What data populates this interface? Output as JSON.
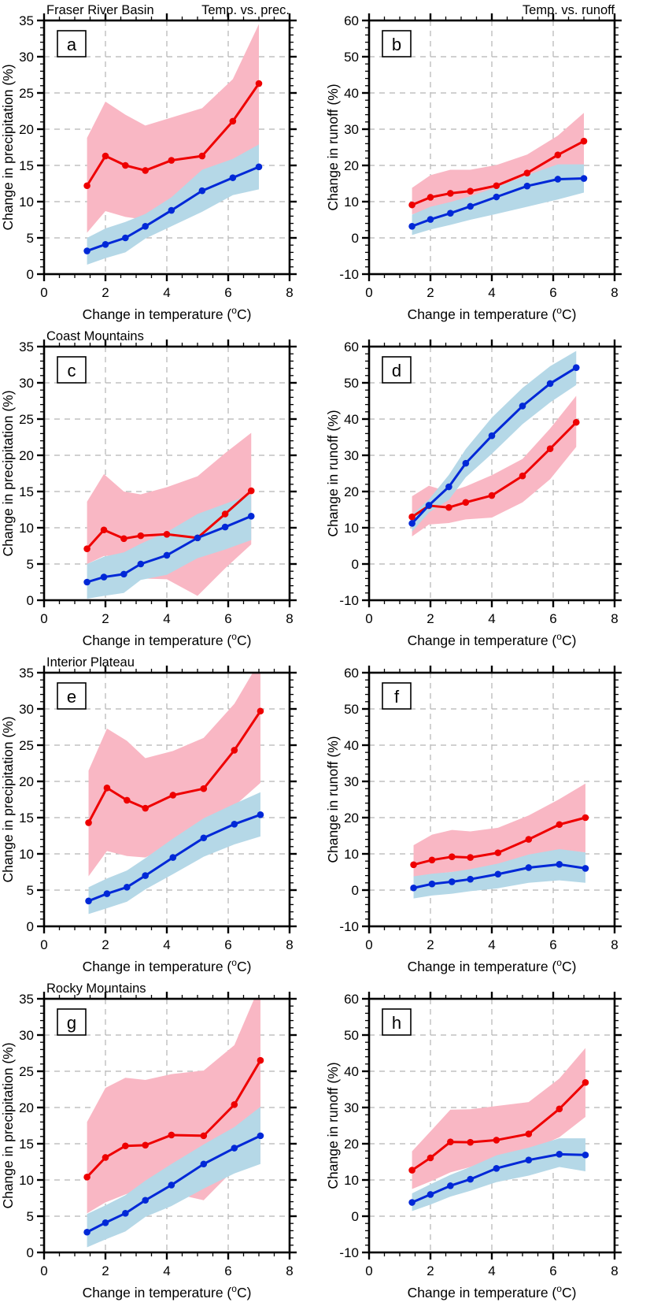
{
  "figure": {
    "row_titles": [
      "Fraser River Basin",
      "Coast Mountains",
      "Interior Plateau",
      "Rocky Mountains"
    ],
    "corner_title_left_column": "Temp. vs. prec.",
    "corner_title_right_column": "Temp. vs. runoff"
  },
  "colors": {
    "red_line": "#ee0000",
    "red_band": "#f9b7c4",
    "blue_line": "#0028d7",
    "blue_band": "#b5d8e7",
    "grid": "#b4b4b4",
    "frame": "#000000"
  },
  "chart_data": [
    {
      "type": "line",
      "id": "a",
      "region_title": "Fraser River Basin",
      "corner_title": "Temp. vs. prec.",
      "xlabel": "Change in temperature (°C)",
      "ylabel": "Change in precipitation (%)",
      "xlim": [
        0,
        8
      ],
      "ylim": [
        0,
        35
      ],
      "xtick_major": 2,
      "xtick_minor": 0.5,
      "ytick_major": 5,
      "ytick_minor": 1,
      "grid": true,
      "legend": "none",
      "x": [
        1.4,
        2.0,
        2.65,
        3.3,
        4.15,
        5.15,
        6.15,
        7.0
      ],
      "series": [
        {
          "name": "red",
          "values": [
            12.2,
            16.3,
            15.0,
            14.3,
            15.7,
            16.3,
            21.1,
            26.3
          ],
          "band_upper": [
            18.8,
            23.8,
            22.0,
            20.5,
            21.6,
            22.9,
            26.9,
            34.5
          ],
          "band_lower": [
            5.7,
            8.7,
            7.9,
            7.5,
            8.8,
            11.0,
            13.5,
            16.0
          ]
        },
        {
          "name": "blue",
          "values": [
            3.2,
            4.1,
            5.0,
            6.6,
            8.8,
            11.5,
            13.3,
            14.8
          ],
          "band_upper": [
            5.0,
            6.3,
            7.2,
            8.3,
            10.6,
            14.4,
            15.9,
            17.9
          ],
          "band_lower": [
            1.3,
            2.2,
            3.0,
            4.9,
            6.6,
            8.6,
            10.9,
            11.7
          ]
        }
      ]
    },
    {
      "type": "line",
      "id": "b",
      "region_title": null,
      "corner_title": "Temp. vs. runoff",
      "xlabel": "Change in temperature (°C)",
      "ylabel": "Change in runoff (%)",
      "xlim": [
        0,
        8
      ],
      "ylim": [
        -10,
        60
      ],
      "xtick_major": 2,
      "xtick_minor": 0.5,
      "ytick_major": 10,
      "ytick_minor": 2,
      "grid": true,
      "legend": "none",
      "x": [
        1.4,
        2.0,
        2.65,
        3.3,
        4.15,
        5.15,
        6.15,
        7.0
      ],
      "series": [
        {
          "name": "red",
          "values": [
            9.1,
            11.2,
            12.3,
            12.9,
            14.4,
            17.9,
            22.9,
            26.7
          ],
          "band_upper": [
            13.8,
            17.3,
            18.8,
            18.8,
            20.1,
            23.0,
            28.2,
            34.5
          ],
          "band_lower": [
            6.5,
            8.0,
            9.0,
            9.7,
            11.0,
            13.2,
            16.0,
            18.5
          ]
        },
        {
          "name": "blue",
          "values": [
            3.2,
            5.1,
            6.8,
            8.7,
            11.3,
            14.3,
            16.2,
            16.4
          ],
          "band_upper": [
            6.4,
            8.6,
            9.9,
            11.5,
            14.0,
            17.3,
            20.3,
            20.3
          ],
          "band_lower": [
            0.8,
            2.3,
            3.6,
            5.0,
            6.6,
            8.6,
            10.6,
            12.5
          ]
        }
      ]
    },
    {
      "type": "line",
      "id": "c",
      "region_title": "Coast Mountains",
      "corner_title": null,
      "xlabel": "Change in temperature (°C)",
      "ylabel": "Change in precipitation (%)",
      "xlim": [
        0,
        8
      ],
      "ylim": [
        0,
        35
      ],
      "xtick_major": 2,
      "xtick_minor": 0.5,
      "ytick_major": 5,
      "ytick_minor": 1,
      "grid": true,
      "legend": "none",
      "x": [
        1.4,
        1.95,
        2.6,
        3.15,
        4.0,
        5.0,
        5.9,
        6.75
      ],
      "series": [
        {
          "name": "red",
          "values": [
            7.1,
            9.7,
            8.5,
            8.9,
            9.1,
            8.6,
            11.9,
            15.1
          ],
          "band_upper": [
            13.6,
            17.4,
            15.0,
            14.6,
            15.6,
            17.1,
            20.3,
            23.1
          ],
          "band_lower": [
            5.0,
            6.1,
            6.3,
            3.0,
            2.9,
            0.6,
            4.4,
            7.7
          ]
        },
        {
          "name": "blue",
          "values": [
            2.5,
            3.2,
            3.6,
            5.0,
            6.2,
            8.6,
            10.1,
            11.6
          ],
          "band_upper": [
            5.0,
            6.0,
            6.6,
            7.8,
            9.4,
            11.9,
            13.3,
            14.6
          ],
          "band_lower": [
            0.2,
            0.6,
            1.0,
            2.8,
            3.5,
            5.8,
            7.0,
            8.3
          ]
        }
      ]
    },
    {
      "type": "line",
      "id": "d",
      "region_title": null,
      "corner_title": null,
      "xlabel": "Change in temperature (°C)",
      "ylabel": "Change in runoff (%)",
      "xlim": [
        0,
        8
      ],
      "ylim": [
        -10,
        60
      ],
      "xtick_major": 2,
      "xtick_minor": 0.5,
      "ytick_major": 10,
      "ytick_minor": 2,
      "grid": true,
      "legend": "none",
      "x": [
        1.4,
        1.95,
        2.6,
        3.15,
        4.0,
        5.0,
        5.9,
        6.75
      ],
      "series": [
        {
          "name": "red",
          "values": [
            13.0,
            16.1,
            15.6,
            17.0,
            18.9,
            24.3,
            31.8,
            39.1
          ],
          "band_upper": [
            18.7,
            21.6,
            19.9,
            21.4,
            24.5,
            29.0,
            37.4,
            46.4
          ],
          "band_lower": [
            7.6,
            10.9,
            11.3,
            12.3,
            12.8,
            17.0,
            23.4,
            32.3
          ]
        },
        {
          "name": "blue",
          "values": [
            11.2,
            16.2,
            21.3,
            27.8,
            35.4,
            43.6,
            49.8,
            54.2
          ],
          "band_upper": [
            13.6,
            17.8,
            24.6,
            31.7,
            40.4,
            48.6,
            54.6,
            58.8
          ],
          "band_lower": [
            8.9,
            14.2,
            17.7,
            23.9,
            30.4,
            38.6,
            44.6,
            49.4
          ]
        }
      ]
    },
    {
      "type": "line",
      "id": "e",
      "region_title": "Interior Plateau",
      "corner_title": null,
      "xlabel": "Change in temperature (°C)",
      "ylabel": "Change in precipitation (%)",
      "xlim": [
        0,
        8
      ],
      "ylim": [
        0,
        35
      ],
      "xtick_major": 2,
      "xtick_minor": 0.5,
      "ytick_major": 5,
      "ytick_minor": 1,
      "grid": true,
      "legend": "none",
      "x": [
        1.45,
        2.05,
        2.7,
        3.3,
        4.2,
        5.2,
        6.2,
        7.05
      ],
      "series": [
        {
          "name": "red",
          "values": [
            14.3,
            19.1,
            17.4,
            16.3,
            18.1,
            19.0,
            24.3,
            29.7
          ],
          "band_upper": [
            21.5,
            27.3,
            25.6,
            23.2,
            24.2,
            26.0,
            30.7,
            36.8
          ],
          "band_lower": [
            6.9,
            10.4,
            9.7,
            9.5,
            11.4,
            13.7,
            16.6,
            19.8
          ]
        },
        {
          "name": "blue",
          "values": [
            3.5,
            4.5,
            5.4,
            7.0,
            9.5,
            12.2,
            14.1,
            15.4
          ],
          "band_upper": [
            5.4,
            6.6,
            7.7,
            9.4,
            12.1,
            14.9,
            16.9,
            18.5
          ],
          "band_lower": [
            1.7,
            2.5,
            3.4,
            5.1,
            7.2,
            9.6,
            11.3,
            12.4
          ]
        }
      ]
    },
    {
      "type": "line",
      "id": "f",
      "region_title": null,
      "corner_title": null,
      "xlabel": "Change in temperature (°C)",
      "ylabel": "Change in runoff (%)",
      "xlim": [
        0,
        8
      ],
      "ylim": [
        -10,
        60
      ],
      "xtick_major": 2,
      "xtick_minor": 0.5,
      "ytick_major": 10,
      "ytick_minor": 2,
      "grid": true,
      "legend": "none",
      "x": [
        1.45,
        2.05,
        2.7,
        3.3,
        4.2,
        5.2,
        6.2,
        7.05
      ],
      "series": [
        {
          "name": "red",
          "values": [
            7.0,
            8.3,
            9.2,
            9.0,
            10.3,
            14.0,
            18.1,
            20.0
          ],
          "band_upper": [
            12.4,
            15.3,
            16.6,
            16.2,
            17.2,
            20.6,
            25.1,
            29.4
          ],
          "band_lower": [
            3.6,
            4.4,
            5.0,
            5.6,
            7.0,
            9.6,
            11.2,
            10.4
          ]
        },
        {
          "name": "blue",
          "values": [
            0.6,
            1.7,
            2.3,
            3.0,
            4.4,
            6.2,
            7.1,
            6.0
          ],
          "band_upper": [
            3.8,
            4.5,
            5.0,
            5.8,
            7.3,
            9.8,
            11.3,
            10.4
          ],
          "band_lower": [
            -2.3,
            -1.5,
            -1.0,
            -0.3,
            0.5,
            2.0,
            2.7,
            2.0
          ]
        }
      ]
    },
    {
      "type": "line",
      "id": "g",
      "region_title": "Rocky Mountains",
      "corner_title": null,
      "xlabel": "Change in temperature (°C)",
      "ylabel": "Change in precipitation (%)",
      "xlim": [
        0,
        8
      ],
      "ylim": [
        0,
        35
      ],
      "xtick_major": 2,
      "xtick_minor": 0.5,
      "ytick_major": 5,
      "ytick_minor": 1,
      "grid": true,
      "legend": "none",
      "x": [
        1.4,
        2.0,
        2.65,
        3.3,
        4.15,
        5.2,
        6.2,
        7.05
      ],
      "series": [
        {
          "name": "red",
          "values": [
            10.4,
            13.1,
            14.7,
            14.8,
            16.2,
            16.1,
            20.4,
            26.5
          ],
          "band_upper": [
            18.0,
            22.7,
            24.1,
            23.8,
            24.6,
            25.1,
            28.6,
            37.0
          ],
          "band_lower": [
            5.4,
            6.9,
            8.0,
            9.0,
            8.2,
            7.2,
            11.5,
            12.4
          ]
        },
        {
          "name": "blue",
          "values": [
            2.8,
            4.1,
            5.4,
            7.2,
            9.3,
            12.2,
            14.4,
            16.1
          ],
          "band_upper": [
            5.3,
            6.5,
            7.9,
            9.9,
            12.2,
            14.9,
            17.3,
            20.1
          ],
          "band_lower": [
            0.7,
            1.8,
            2.9,
            4.9,
            6.4,
            8.8,
            10.9,
            12.2
          ]
        }
      ]
    },
    {
      "type": "line",
      "id": "h",
      "region_title": null,
      "corner_title": null,
      "xlabel": "Change in temperature (°C)",
      "ylabel": "Change in runoff (%)",
      "xlim": [
        0,
        8
      ],
      "ylim": [
        -10,
        60
      ],
      "xtick_major": 2,
      "xtick_minor": 0.5,
      "ytick_major": 10,
      "ytick_minor": 2,
      "grid": true,
      "legend": "none",
      "x": [
        1.4,
        2.0,
        2.65,
        3.3,
        4.15,
        5.2,
        6.2,
        7.05
      ],
      "series": [
        {
          "name": "red",
          "values": [
            12.7,
            16.1,
            20.5,
            20.4,
            21.0,
            22.7,
            29.6,
            36.9
          ],
          "band_upper": [
            17.9,
            23.4,
            29.4,
            29.5,
            30.4,
            31.5,
            38.0,
            46.4
          ],
          "band_lower": [
            7.5,
            9.6,
            12.1,
            13.6,
            16.5,
            18.0,
            21.8,
            27.4
          ]
        },
        {
          "name": "blue",
          "values": [
            3.8,
            6.0,
            8.4,
            10.2,
            13.2,
            15.5,
            17.1,
            16.9
          ],
          "band_upper": [
            6.3,
            8.8,
            11.4,
            13.6,
            16.8,
            18.9,
            21.5,
            21.5
          ],
          "band_lower": [
            1.4,
            3.2,
            5.4,
            7.0,
            9.4,
            11.2,
            13.6,
            12.4
          ]
        }
      ]
    }
  ]
}
